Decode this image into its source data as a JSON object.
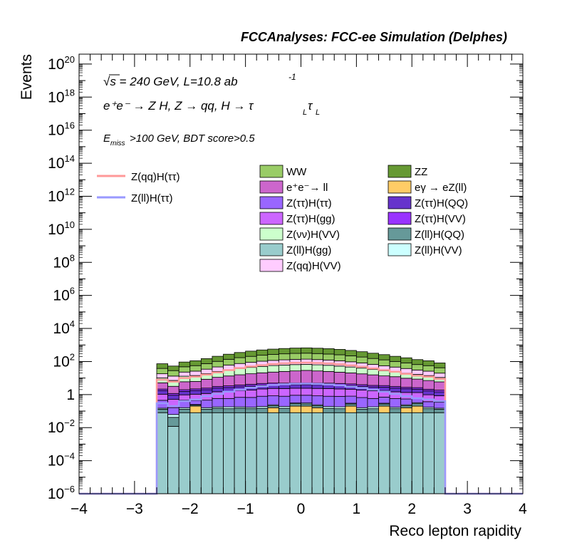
{
  "chart_data": {
    "type": "bar",
    "title": "FCCAnalyses: FCC-ee Simulation (Delphes)",
    "xlabel": "Reco lepton rapidity",
    "ylabel": "Events",
    "xlim": [
      -4,
      4
    ],
    "ylim_log10": [
      -6,
      20.6
    ],
    "log_y": true,
    "x_ticks": [
      {
        "v": -4,
        "label": "−4"
      },
      {
        "v": -3,
        "label": "−3"
      },
      {
        "v": -2,
        "label": "−2"
      },
      {
        "v": -1,
        "label": "−1"
      },
      {
        "v": 0,
        "label": "0"
      },
      {
        "v": 1,
        "label": "1"
      },
      {
        "v": 2,
        "label": "2"
      },
      {
        "v": 3,
        "label": "3"
      },
      {
        "v": 4,
        "label": "4"
      }
    ],
    "y_ticks": [
      {
        "exp": -6,
        "base": "10",
        "sup": "−6"
      },
      {
        "exp": -4,
        "base": "10",
        "sup": "−4"
      },
      {
        "exp": -2,
        "base": "10",
        "sup": "−2"
      },
      {
        "exp": 0,
        "base": "1",
        "sup": ""
      },
      {
        "exp": 2,
        "base": "10",
        "sup": "2"
      },
      {
        "exp": 4,
        "base": "10",
        "sup": "4"
      },
      {
        "exp": 6,
        "base": "10",
        "sup": "6"
      },
      {
        "exp": 8,
        "base": "10",
        "sup": "8"
      },
      {
        "exp": 10,
        "base": "10",
        "sup": "10"
      },
      {
        "exp": 12,
        "base": "10",
        "sup": "12"
      },
      {
        "exp": 14,
        "base": "10",
        "sup": "14"
      },
      {
        "exp": 16,
        "base": "10",
        "sup": "16"
      },
      {
        "exp": 18,
        "base": "10",
        "sup": "18"
      },
      {
        "exp": 20,
        "base": "10",
        "sup": "20"
      }
    ],
    "annotations": {
      "energy": "√s = 240 GeV, L=10.8 ab",
      "energy_sup": "-1",
      "process": "e⁺e⁻ → Z H, Z  → qq, H  → τ",
      "process_sub1": "L",
      "process_tau2": "τ",
      "process_sub2": "L",
      "cuts_e": "E",
      "cuts_sub": "miss",
      "cuts_rest": ">100 GeV, BDT score>0.5"
    },
    "bin_edges": [
      -2.6,
      -2.4,
      -2.2,
      -2.0,
      -1.8,
      -1.6,
      -1.4,
      -1.2,
      -1.0,
      -0.8,
      -0.6,
      -0.4,
      -0.2,
      0.0,
      0.2,
      0.4,
      0.6,
      0.8,
      1.0,
      1.2,
      1.4,
      1.6,
      1.8,
      2.0,
      2.2,
      2.4,
      2.6
    ],
    "stack": [
      {
        "name": "Z(ll)H(gg)",
        "color": "#99cccc",
        "values": [
          0.08,
          0.012,
          0.08,
          0.08,
          0.08,
          0.08,
          0.08,
          0.08,
          0.08,
          0.08,
          0.08,
          0.08,
          0.08,
          0.08,
          0.08,
          0.08,
          0.08,
          0.08,
          0.08,
          0.08,
          0.08,
          0.08,
          0.08,
          0.08,
          0.08,
          0.08
        ]
      },
      {
        "name": "eγ → eZ(ll)",
        "color": "#ffcc66",
        "values": [
          0,
          0,
          0,
          0.12,
          0,
          0,
          0,
          0,
          0,
          0,
          0.08,
          0,
          0.12,
          0.12,
          0.08,
          0,
          0,
          0.12,
          0,
          0,
          0.12,
          0,
          0.08,
          0.12,
          0,
          0
        ]
      },
      {
        "name": "Z(ll)H(QQ)",
        "color": "#669999",
        "values": [
          0.05,
          0.03,
          0.05,
          0.03,
          0.05,
          0.07,
          0.06,
          0.07,
          0.06,
          0.07,
          0.05,
          0.07,
          0.08,
          0.07,
          0.05,
          0.07,
          0.06,
          0.07,
          0.05,
          0.06,
          0.07,
          0.06,
          0.05,
          0.08,
          0.06,
          0.05
        ]
      },
      {
        "name": "Z(ll)H(VV)",
        "color": "#ccffff",
        "values": [
          0.02,
          0.02,
          0.03,
          0.02,
          0.03,
          0.03,
          0.04,
          0.03,
          0.03,
          0.04,
          0.03,
          0.04,
          0.03,
          0.04,
          0.03,
          0.04,
          0.04,
          0.03,
          0.03,
          0.04,
          0.03,
          0.03,
          0.03,
          0.04,
          0.03,
          0.02
        ]
      },
      {
        "name": "Z(ττ)H(ττ)",
        "color": "#9966ff",
        "values": [
          0.3,
          0.1,
          0.3,
          0.2,
          0.3,
          0.4,
          0.4,
          0.5,
          0.5,
          0.6,
          0.6,
          0.6,
          0.6,
          0.6,
          0.6,
          0.6,
          0.6,
          0.5,
          0.5,
          0.4,
          0.4,
          0.4,
          0.3,
          0.3,
          0.2,
          0.2
        ]
      },
      {
        "name": "Z(ττ)H(gg)",
        "color": "#cc66ff",
        "values": [
          0.6,
          0.35,
          0.5,
          0.6,
          0.7,
          0.9,
          1.0,
          1.1,
          1.2,
          1.4,
          1.5,
          1.5,
          1.5,
          1.5,
          1.5,
          1.5,
          1.4,
          1.3,
          1.2,
          1.1,
          1.0,
          0.9,
          0.8,
          0.7,
          0.6,
          0.5
        ]
      },
      {
        "name": "Z(ττ)H(QQ)",
        "color": "#6633cc",
        "values": [
          0.7,
          0.4,
          0.6,
          0.7,
          0.8,
          1.0,
          1.1,
          1.2,
          1.4,
          1.5,
          1.6,
          1.6,
          1.6,
          1.6,
          1.6,
          1.6,
          1.5,
          1.4,
          1.3,
          1.2,
          1.1,
          1.0,
          0.9,
          0.8,
          0.7,
          0.6
        ]
      },
      {
        "name": "Z(ττ)H(VV)",
        "color": "#9933ff",
        "values": [
          0.4,
          0.25,
          0.4,
          0.45,
          0.5,
          0.6,
          0.7,
          0.8,
          0.9,
          1.0,
          1.0,
          1.0,
          1.0,
          1.0,
          1.0,
          1.0,
          1.0,
          0.9,
          0.8,
          0.7,
          0.7,
          0.6,
          0.5,
          0.5,
          0.4,
          0.4
        ]
      },
      {
        "name": "e⁺e⁻→ ll",
        "color": "#cc66cc",
        "values": [
          3,
          2,
          4,
          4,
          6,
          8,
          10,
          12,
          14,
          16,
          18,
          20,
          22,
          24,
          22,
          20,
          18,
          16,
          14,
          12,
          10,
          9,
          7,
          6,
          5,
          4
        ]
      },
      {
        "name": "Z(νν)H(VV)",
        "color": "#ccffcc",
        "values": [
          5,
          4,
          7,
          8,
          10,
          14,
          18,
          22,
          26,
          30,
          34,
          36,
          38,
          38,
          36,
          34,
          30,
          26,
          22,
          18,
          14,
          12,
          10,
          8,
          7,
          5
        ]
      },
      {
        "name": "Z(qq)H(VV)",
        "color": "#ffccff",
        "values": [
          8,
          6,
          10,
          12,
          16,
          22,
          30,
          38,
          46,
          54,
          60,
          66,
          70,
          72,
          68,
          64,
          58,
          50,
          42,
          34,
          28,
          22,
          18,
          14,
          12,
          9
        ]
      },
      {
        "name": "WW",
        "color": "#99cc66",
        "values": [
          20,
          15,
          25,
          30,
          40,
          55,
          75,
          95,
          115,
          135,
          150,
          165,
          175,
          180,
          172,
          160,
          145,
          125,
          105,
          85,
          70,
          55,
          45,
          35,
          30,
          22
        ]
      },
      {
        "name": "ZZ",
        "color": "#669933",
        "values": [
          35,
          25,
          45,
          55,
          75,
          105,
          140,
          180,
          220,
          260,
          295,
          320,
          340,
          350,
          335,
          315,
          285,
          245,
          205,
          165,
          135,
          105,
          85,
          65,
          55,
          40
        ]
      }
    ],
    "lines": [
      {
        "name": "Z(qq)H(ττ)",
        "color": "#ff9999",
        "values": [
          8,
          6,
          10,
          12,
          16,
          22,
          30,
          40,
          50,
          60,
          70,
          78,
          84,
          86,
          82,
          76,
          68,
          58,
          48,
          38,
          30,
          24,
          18,
          14,
          12,
          9
        ]
      },
      {
        "name": "Z(ll)H(ττ)",
        "color": "#9999ff",
        "values": [
          0.3,
          0.2,
          0.4,
          0.5,
          0.8,
          1.1,
          1.5,
          2.0,
          2.6,
          3.2,
          3.8,
          4.2,
          4.5,
          4.6,
          4.4,
          4.1,
          3.6,
          3.0,
          2.5,
          2.0,
          1.5,
          1.1,
          0.8,
          0.6,
          0.5,
          0.4
        ]
      }
    ],
    "legend_lines": [
      {
        "label": "Z(qq)H(ττ)",
        "color": "#ff9999"
      },
      {
        "label": "Z(ll)H(ττ)",
        "color": "#9999ff"
      }
    ],
    "legend_stack": [
      {
        "label": "WW",
        "color": "#99cc66"
      },
      {
        "label": "ZZ",
        "color": "#669933"
      },
      {
        "label": "e⁺e⁻→ ll",
        "color": "#cc66cc"
      },
      {
        "label": "eγ → eZ(ll)",
        "color": "#ffcc66"
      },
      {
        "label": "Z(ττ)H(ττ)",
        "color": "#9966ff"
      },
      {
        "label": "Z(ττ)H(QQ)",
        "color": "#6633cc"
      },
      {
        "label": "Z(ττ)H(gg)",
        "color": "#cc66ff"
      },
      {
        "label": "Z(ττ)H(VV)",
        "color": "#9933ff"
      },
      {
        "label": "Z(νν)H(VV)",
        "color": "#ccffcc"
      },
      {
        "label": "Z(ll)H(QQ)",
        "color": "#669999"
      },
      {
        "label": "Z(ll)H(gg)",
        "color": "#99cccc"
      },
      {
        "label": "Z(ll)H(VV)",
        "color": "#ccffff"
      },
      {
        "label": "Z(qq)H(VV)",
        "color": "#ffccff"
      }
    ]
  }
}
